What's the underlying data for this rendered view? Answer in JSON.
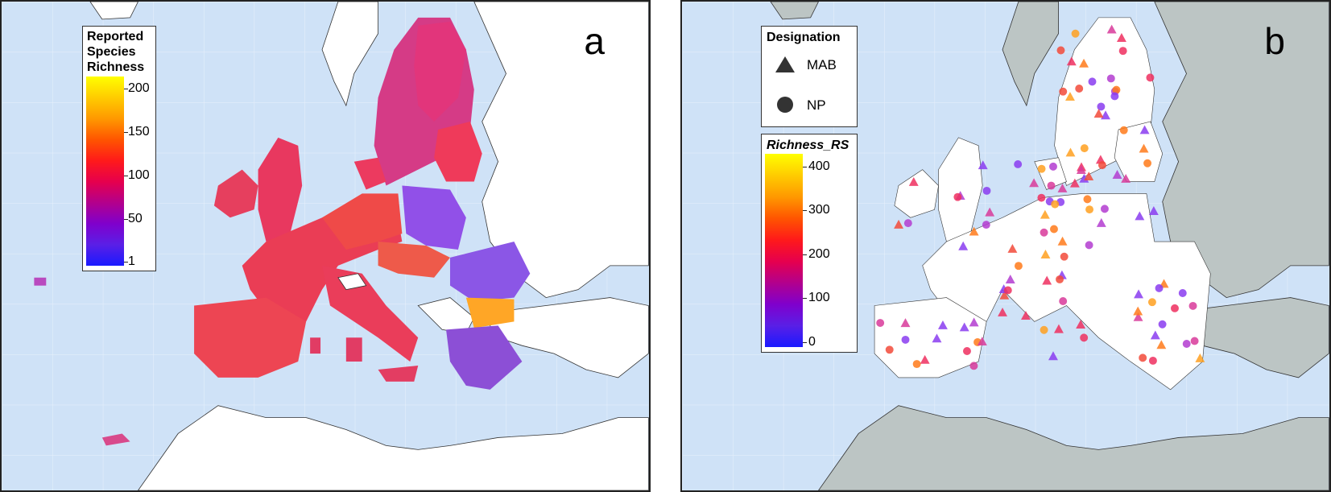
{
  "panel_a": {
    "letter": "a",
    "legend": {
      "title_lines": [
        "Reported",
        "Species",
        "Richness"
      ],
      "ticks": [
        "200",
        "150",
        "100",
        "50",
        "1"
      ],
      "colors": [
        "#ffff00",
        "#ffcc00",
        "#ff9900",
        "#ff5500",
        "#ff1a1a",
        "#e6004d",
        "#b3008c",
        "#8000cc",
        "#5a1fe6",
        "#1a1aff"
      ]
    }
  },
  "panel_b": {
    "letter": "b",
    "designation": {
      "title": "Designation",
      "items": [
        {
          "symbol": "triangle",
          "label": "MAB"
        },
        {
          "symbol": "circle",
          "label": "NP"
        }
      ]
    },
    "legend": {
      "title": "Richness_RS",
      "ticks": [
        "400",
        "300",
        "200",
        "100",
        "0"
      ],
      "colors": [
        "#ffff00",
        "#ffcc00",
        "#ff9900",
        "#ff5500",
        "#ff1a1a",
        "#e6004d",
        "#b3008c",
        "#8000cc",
        "#5a1fe6",
        "#1a1aff"
      ]
    }
  },
  "colors": {
    "sea": "#cfe2f7",
    "land_outside": "#ffffff",
    "land_outside_b": "#bcc5c4",
    "richness_low": "#8a3cf0",
    "richness_mid": "#ef2f5f",
    "richness_high": "#ffa020"
  }
}
